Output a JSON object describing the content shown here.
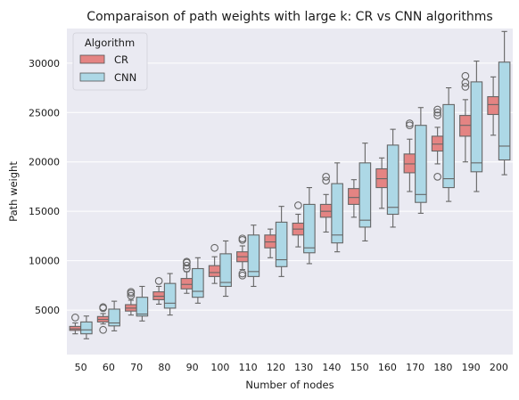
{
  "chart_data": {
    "type": "box",
    "title": "Comparaison of path weights with large k: CR vs CNN algorithms",
    "xlabel": "Number of nodes",
    "ylabel": "Path weight",
    "categories": [
      "50",
      "60",
      "70",
      "80",
      "90",
      "100",
      "110",
      "120",
      "130",
      "140",
      "150",
      "160",
      "170",
      "180",
      "190",
      "200"
    ],
    "ylim": [
      500,
      33500
    ],
    "yticks": [
      5000,
      10000,
      15000,
      20000,
      25000,
      30000
    ],
    "grid": true,
    "legend": {
      "title": "Algorithm",
      "placement": "top-left"
    },
    "series": [
      {
        "name": "CR",
        "color": "#e48483",
        "boxes": [
          {
            "wlo": 2600,
            "q1": 2950,
            "med": 3100,
            "q3": 3350,
            "whi": 3700,
            "out": [
              4250
            ]
          },
          {
            "wlo": 3600,
            "q1": 3800,
            "med": 4050,
            "q3": 4350,
            "whi": 4650,
            "out": [
              5200,
              5300,
              3000
            ]
          },
          {
            "wlo": 4500,
            "q1": 4900,
            "med": 5200,
            "q3": 5550,
            "whi": 6000,
            "out": [
              6450,
              6700,
              6850
            ]
          },
          {
            "wlo": 5600,
            "q1": 6050,
            "med": 6400,
            "q3": 6850,
            "whi": 7400,
            "out": [
              7950
            ]
          },
          {
            "wlo": 6700,
            "q1": 7150,
            "med": 7600,
            "q3": 8200,
            "whi": 8900,
            "out": [
              9200,
              9500,
              9800,
              9900
            ]
          },
          {
            "wlo": 7700,
            "q1": 8400,
            "med": 8800,
            "q3": 9500,
            "whi": 10400,
            "out": [
              11300
            ]
          },
          {
            "wlo": 9100,
            "q1": 9900,
            "med": 10400,
            "q3": 10900,
            "whi": 11500,
            "out": [
              12100,
              8700,
              8500,
              12250
            ]
          },
          {
            "wlo": 10300,
            "q1": 11300,
            "med": 11900,
            "q3": 12600,
            "whi": 13200,
            "out": []
          },
          {
            "wlo": 11400,
            "q1": 12600,
            "med": 13200,
            "q3": 13800,
            "whi": 14700,
            "out": [
              15600
            ]
          },
          {
            "wlo": 12900,
            "q1": 14400,
            "med": 15000,
            "q3": 15700,
            "whi": 16700,
            "out": [
              18100,
              18500
            ]
          },
          {
            "wlo": 14400,
            "q1": 15700,
            "med": 16400,
            "q3": 17300,
            "whi": 18200,
            "out": []
          },
          {
            "wlo": 15300,
            "q1": 17400,
            "med": 18300,
            "q3": 19300,
            "whi": 20400,
            "out": []
          },
          {
            "wlo": 17000,
            "q1": 18900,
            "med": 19800,
            "q3": 20800,
            "whi": 22300,
            "out": [
              23700,
              23900
            ]
          },
          {
            "wlo": 19800,
            "q1": 21100,
            "med": 21800,
            "q3": 22600,
            "whi": 23500,
            "out": [
              18500,
              24700,
              25000,
              25300
            ]
          },
          {
            "wlo": 20000,
            "q1": 22600,
            "med": 23700,
            "q3": 24700,
            "whi": 26300,
            "out": [
              27600,
              28000,
              28700
            ]
          },
          {
            "wlo": 22700,
            "q1": 24800,
            "med": 25800,
            "q3": 26600,
            "whi": 28600,
            "out": []
          }
        ]
      },
      {
        "name": "CNN",
        "color": "#add8e6",
        "boxes": [
          {
            "wlo": 2100,
            "q1": 2600,
            "med": 3000,
            "q3": 3800,
            "whi": 4400,
            "out": []
          },
          {
            "wlo": 2900,
            "q1": 3400,
            "med": 3700,
            "q3": 5100,
            "whi": 5900,
            "out": []
          },
          {
            "wlo": 3900,
            "q1": 4400,
            "med": 4600,
            "q3": 6300,
            "whi": 7400,
            "out": []
          },
          {
            "wlo": 4500,
            "q1": 5200,
            "med": 5700,
            "q3": 7700,
            "whi": 8700,
            "out": []
          },
          {
            "wlo": 5700,
            "q1": 6300,
            "med": 6900,
            "q3": 9200,
            "whi": 10300,
            "out": []
          },
          {
            "wlo": 6400,
            "q1": 7400,
            "med": 7800,
            "q3": 10700,
            "whi": 12000,
            "out": []
          },
          {
            "wlo": 7400,
            "q1": 8400,
            "med": 8900,
            "q3": 12600,
            "whi": 13600,
            "out": []
          },
          {
            "wlo": 8400,
            "q1": 9400,
            "med": 10100,
            "q3": 13900,
            "whi": 15500,
            "out": []
          },
          {
            "wlo": 9700,
            "q1": 10800,
            "med": 11300,
            "q3": 15700,
            "whi": 17400,
            "out": []
          },
          {
            "wlo": 10900,
            "q1": 11800,
            "med": 12600,
            "q3": 17800,
            "whi": 19900,
            "out": []
          },
          {
            "wlo": 12000,
            "q1": 13400,
            "med": 14100,
            "q3": 19900,
            "whi": 21900,
            "out": []
          },
          {
            "wlo": 13400,
            "q1": 14700,
            "med": 15400,
            "q3": 21700,
            "whi": 23300,
            "out": []
          },
          {
            "wlo": 14800,
            "q1": 15900,
            "med": 16700,
            "q3": 23700,
            "whi": 25500,
            "out": []
          },
          {
            "wlo": 16000,
            "q1": 17400,
            "med": 18300,
            "q3": 25800,
            "whi": 27500,
            "out": []
          },
          {
            "wlo": 17000,
            "q1": 19000,
            "med": 19900,
            "q3": 28100,
            "whi": 30200,
            "out": []
          },
          {
            "wlo": 18700,
            "q1": 20200,
            "med": 21600,
            "q3": 30100,
            "whi": 33200,
            "out": []
          }
        ]
      }
    ]
  }
}
